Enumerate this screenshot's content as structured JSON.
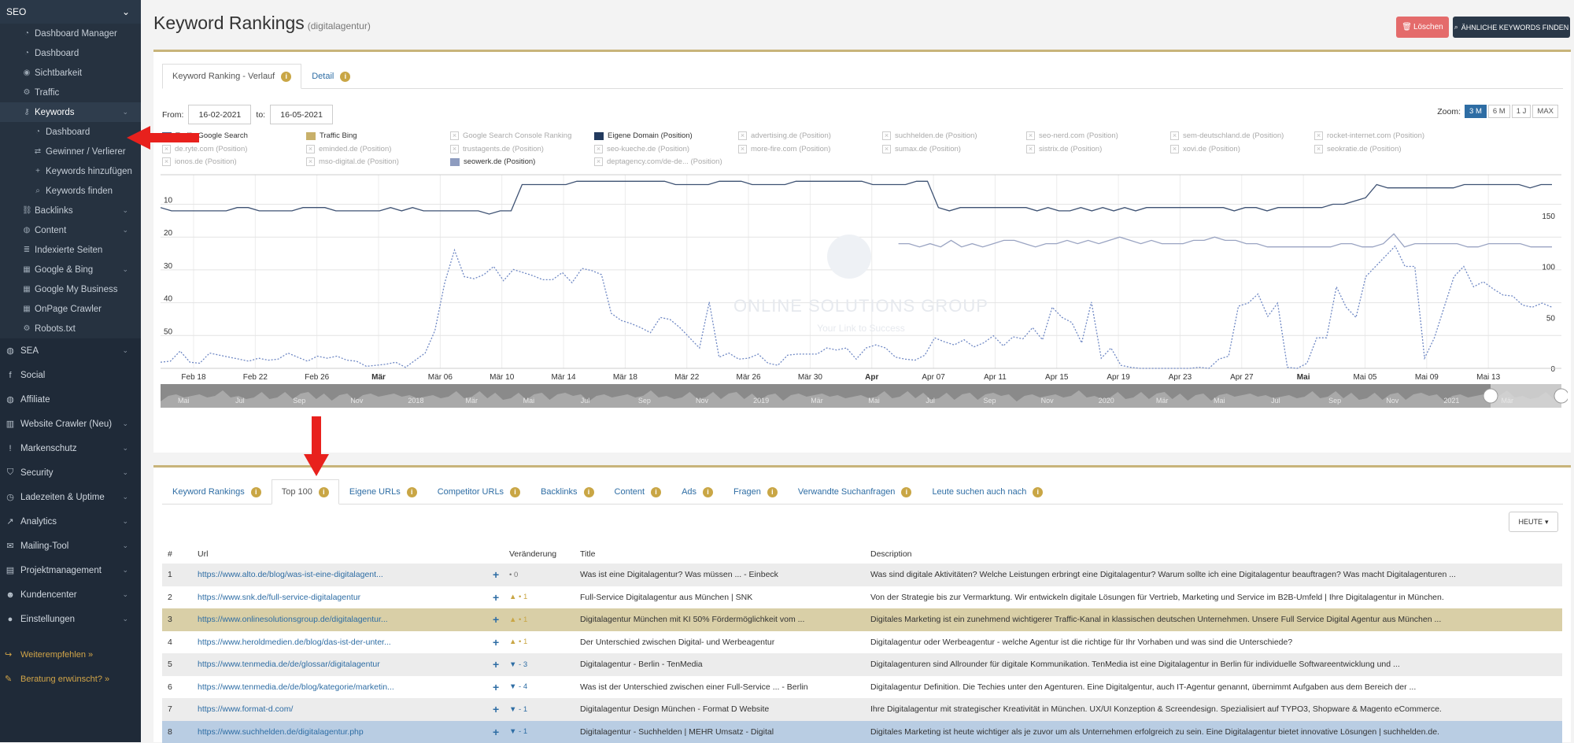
{
  "sidebar": {
    "section": "SEO",
    "seo_items": [
      {
        "label": "Dashboard Manager",
        "icon": "dashboard-icon"
      },
      {
        "label": "Dashboard",
        "icon": "dashboard-icon"
      },
      {
        "label": "Sichtbarkeit",
        "icon": "eye-icon"
      },
      {
        "label": "Traffic",
        "icon": "cogs-icon"
      },
      {
        "label": "Keywords",
        "icon": "key-icon"
      }
    ],
    "keyword_items": [
      {
        "label": "Dashboard",
        "icon": "dashboard-icon"
      },
      {
        "label": "Gewinner / Verlierer",
        "icon": "swap-icon"
      },
      {
        "label": "Keywords hinzufügen",
        "icon": "plus-icon"
      },
      {
        "label": "Keywords finden",
        "icon": "search-icon"
      }
    ],
    "seo_items2": [
      {
        "label": "Backlinks",
        "icon": "link-icon"
      },
      {
        "label": "Content",
        "icon": "globe-icon"
      },
      {
        "label": "Indexierte Seiten",
        "icon": "list-icon"
      },
      {
        "label": "Google & Bing",
        "icon": "building-icon"
      },
      {
        "label": "Google My Business",
        "icon": "building-icon"
      },
      {
        "label": "OnPage Crawler",
        "icon": "building-icon"
      },
      {
        "label": "Robots.txt",
        "icon": "cog-icon"
      }
    ],
    "main_items": [
      {
        "label": "SEA",
        "icon": "globe-icon"
      },
      {
        "label": "Social",
        "icon": "facebook-icon"
      },
      {
        "label": "Affiliate",
        "icon": "globe-icon"
      },
      {
        "label": "Website Crawler (Neu)",
        "icon": "chart-icon"
      },
      {
        "label": "Markenschutz",
        "icon": "exclamation-icon"
      },
      {
        "label": "Security",
        "icon": "shield-icon"
      },
      {
        "label": "Ladezeiten & Uptime",
        "icon": "clock-icon"
      },
      {
        "label": "Analytics",
        "icon": "analytics-icon"
      },
      {
        "label": "Mailing-Tool",
        "icon": "envelope-icon"
      },
      {
        "label": "Projektmanagement",
        "icon": "calendar-icon"
      },
      {
        "label": "Kundencenter",
        "icon": "users-icon"
      },
      {
        "label": "Einstellungen",
        "icon": "user-icon"
      }
    ],
    "extra": [
      {
        "label": "Weiterempfehlen »",
        "icon": "share-icon"
      },
      {
        "label": "Beratung erwünscht? »",
        "icon": "chat-icon"
      }
    ]
  },
  "header": {
    "title": "Keyword Rankings",
    "subtitle": "(digitalagentur)",
    "delete_label": "Löschen",
    "find_label": "ÄHNLICHE KEYWORDS FINDEN"
  },
  "chart_panel": {
    "tabs": [
      "Keyword Ranking - Verlauf",
      "Detail"
    ],
    "from_label": "From:",
    "from_value": "16-02-2021",
    "to_label": "to:",
    "to_value": "16-05-2021",
    "zoom_label": "Zoom:",
    "zoom_options": [
      "3 M",
      "6 M",
      "1 J",
      "MAX"
    ]
  },
  "legend": [
    {
      "name": "Traffic Google Search",
      "on": true,
      "color": "#4a5f8a",
      "type": "swatch"
    },
    {
      "name": "Traffic Bing",
      "on": true,
      "color": "#c8b06a",
      "type": "swatch"
    },
    {
      "name": "Google Search Console Ranking",
      "on": false,
      "type": "x"
    },
    {
      "name": "Eigene Domain (Position)",
      "on": true,
      "color": "#223a5e",
      "type": "swatch"
    },
    {
      "name": "advertising.de (Position)",
      "on": false,
      "type": "x"
    },
    {
      "name": "suchhelden.de (Position)",
      "on": false,
      "type": "x"
    },
    {
      "name": "seo-nerd.com (Position)",
      "on": false,
      "type": "x"
    },
    {
      "name": "sem-deutschland.de (Position)",
      "on": false,
      "type": "x"
    },
    {
      "name": "rocket-internet.com (Position)",
      "on": false,
      "type": "x"
    },
    {
      "name": "de.ryte.com (Position)",
      "on": false,
      "type": "x"
    },
    {
      "name": "eminded.de (Position)",
      "on": false,
      "type": "x"
    },
    {
      "name": "trustagents.de (Position)",
      "on": false,
      "type": "x"
    },
    {
      "name": "seo-kueche.de (Position)",
      "on": false,
      "type": "x"
    },
    {
      "name": "more-fire.com (Position)",
      "on": false,
      "type": "x"
    },
    {
      "name": "sumax.de (Position)",
      "on": false,
      "type": "x"
    },
    {
      "name": "sistrix.de (Position)",
      "on": false,
      "type": "x"
    },
    {
      "name": "xovi.de (Position)",
      "on": false,
      "type": "x"
    },
    {
      "name": "seokratie.de (Position)",
      "on": false,
      "type": "x"
    },
    {
      "name": "ionos.de (Position)",
      "on": false,
      "type": "x"
    },
    {
      "name": "mso-digital.de (Position)",
      "on": false,
      "type": "x"
    },
    {
      "name": "seowerk.de (Position)",
      "on": true,
      "color": "#8e9cbf",
      "type": "swatch"
    },
    {
      "name": "deptagency.com/de-de... (Position)",
      "on": false,
      "type": "x"
    }
  ],
  "chart_data": {
    "type": "line",
    "y_left_ticks": [
      10,
      20,
      30,
      40,
      50
    ],
    "y_left_range": [
      1,
      60
    ],
    "y_right_ticks": [
      150,
      100,
      50,
      0
    ],
    "y_right_range": [
      0,
      190
    ],
    "x_ticks": [
      "Feb 18",
      "Feb 22",
      "Feb 26",
      "Mär",
      "Mär 06",
      "Mär 10",
      "Mär 14",
      "Mär 18",
      "Mär 22",
      "Mär 26",
      "Mär 30",
      "Apr",
      "Apr 07",
      "Apr 11",
      "Apr 15",
      "Apr 19",
      "Apr 23",
      "Apr 27",
      "Mai",
      "Mai 05",
      "Mai 09",
      "Mai 13"
    ],
    "x_ticks_bold": [
      "Mär",
      "Apr",
      "Mai"
    ],
    "navigator_labels": [
      "Mai",
      "Jul",
      "Sep",
      "Nov",
      "2018",
      "Mär",
      "Mai",
      "Jul",
      "Sep",
      "Nov",
      "2019",
      "Mär",
      "Mai",
      "Jul",
      "Sep",
      "Nov",
      "2020",
      "Mär",
      "Mai",
      "Jul",
      "Sep",
      "Nov",
      "2021",
      "Mär"
    ],
    "watermark": "ONLINE SOLUTIONS GROUP",
    "watermark_sub": "Your Link to Success",
    "series": [
      {
        "name": "Eigene Domain (Position)",
        "axis": "left",
        "values": [
          11,
          12,
          12,
          12,
          12,
          12,
          12,
          11,
          11,
          12,
          12,
          12,
          12,
          11,
          11,
          11,
          12,
          12,
          12,
          12,
          12,
          11,
          12,
          11,
          12,
          12,
          12,
          12,
          12,
          12,
          13,
          12,
          12,
          4,
          4,
          4,
          4,
          4,
          3,
          3,
          3,
          3,
          3,
          3,
          3,
          3,
          3,
          4,
          4,
          4,
          4,
          3,
          3,
          3,
          4,
          4,
          4,
          4,
          3,
          3,
          3,
          3,
          3,
          3,
          3,
          4,
          4,
          4,
          4,
          3,
          3,
          11,
          12,
          11,
          11,
          11,
          11,
          11,
          11,
          11,
          12,
          11,
          12,
          12,
          11,
          12,
          11,
          12,
          11,
          12,
          11,
          11,
          11,
          11,
          11,
          11,
          11,
          11,
          12,
          11,
          11,
          12,
          11,
          11,
          11,
          11,
          11,
          10,
          10,
          9,
          8,
          4,
          5,
          5,
          5,
          5,
          5,
          5,
          5,
          4,
          4,
          4,
          4,
          4,
          4,
          5,
          4,
          4
        ],
        "color": "#3e5273"
      },
      {
        "name": "seowerk.de (Position)",
        "axis": "left",
        "values": [
          null,
          null,
          null,
          null,
          null,
          null,
          null,
          null,
          null,
          null,
          null,
          null,
          null,
          null,
          null,
          null,
          null,
          null,
          null,
          null,
          null,
          null,
          null,
          null,
          null,
          null,
          null,
          null,
          null,
          null,
          null,
          null,
          null,
          null,
          null,
          null,
          null,
          null,
          null,
          null,
          null,
          null,
          null,
          null,
          null,
          null,
          null,
          null,
          null,
          null,
          null,
          null,
          null,
          null,
          null,
          null,
          null,
          null,
          null,
          null,
          null,
          null,
          null,
          null,
          null,
          null,
          null,
          null,
          null,
          null,
          22,
          22,
          23,
          22,
          23,
          21,
          23,
          22,
          23,
          22,
          21,
          21,
          22,
          23,
          22,
          22,
          21,
          22,
          21,
          22,
          21,
          20,
          21,
          22,
          21,
          22,
          22,
          22,
          21,
          21,
          20,
          21,
          21,
          22,
          22,
          23,
          23,
          23,
          23,
          23,
          23,
          23,
          22,
          22,
          23,
          23,
          22,
          19,
          23,
          22,
          22,
          22,
          22,
          22,
          23,
          23,
          22,
          22,
          22,
          22,
          23,
          23,
          23
        ],
        "color": "#9aa4c2"
      },
      {
        "name": "Traffic Google Search",
        "axis": "right",
        "values": [
          6,
          7,
          17,
          6,
          5,
          15,
          13,
          11,
          9,
          7,
          10,
          8,
          9,
          15,
          11,
          7,
          12,
          10,
          12,
          8,
          7,
          2,
          3,
          4,
          6,
          1,
          8,
          15,
          37,
          84,
          116,
          90,
          88,
          92,
          100,
          86,
          97,
          94,
          91,
          87,
          87,
          94,
          84,
          98,
          96,
          92,
          54,
          47,
          44,
          40,
          35,
          50,
          48,
          40,
          30,
          20,
          65,
          11,
          15,
          9,
          10,
          14,
          5,
          3,
          13,
          14,
          14,
          14,
          20,
          18,
          20,
          9,
          20,
          23,
          20,
          11,
          9,
          8,
          13,
          30,
          26,
          23,
          28,
          21,
          25,
          32,
          22,
          31,
          29,
          40,
          28,
          60,
          50,
          45,
          25,
          65,
          10,
          20,
          3,
          1,
          0,
          0,
          0,
          0,
          0,
          0,
          1,
          0,
          9,
          12,
          61,
          64,
          73,
          51,
          64,
          1,
          0,
          5,
          30,
          30,
          80,
          60,
          50,
          90,
          100,
          110,
          120,
          100,
          100,
          10,
          30,
          60,
          90,
          100,
          80,
          85,
          78,
          72,
          71,
          62,
          60,
          64,
          60
        ],
        "color": "#6f88c4"
      }
    ]
  },
  "table_panel": {
    "tabs": [
      "Keyword Rankings",
      "Top 100",
      "Eigene URLs",
      "Competitor URLs",
      "Backlinks",
      "Content",
      "Ads",
      "Fragen",
      "Verwandte Suchanfragen",
      "Leute suchen auch nach"
    ],
    "heute_label": "HEUTE",
    "columns": [
      "#",
      "Url",
      "",
      "Veränderung",
      "Title",
      "Description"
    ],
    "rows": [
      {
        "n": "1",
        "url": "https://www.alto.de/blog/was-ist-eine-digitalagent...",
        "change": "• 0",
        "dir": "none",
        "title": "Was ist eine Digitalagentur? Was müssen ... - Einbeck",
        "desc": "Was sind digitale Aktivitäten? Welche Leistungen erbringt eine Digitalagentur? Warum sollte ich eine Digitalagentur beauftragen? Was macht Digitalagenturen ..."
      },
      {
        "n": "2",
        "url": "https://www.snk.de/full-service-digitalagentur",
        "change": "▲ • 1",
        "dir": "up",
        "title": "Full-Service Digitalagentur aus München | SNK",
        "desc": "Von der Strategie bis zur Vermarktung. Wir entwickeln digitale Lösungen für Vertrieb, Marketing und Service im B2B-Umfeld | Ihre Digitalagentur in München."
      },
      {
        "n": "3",
        "url": "https://www.onlinesolutionsgroup.de/digitalagentur...",
        "change": "▲ • 1",
        "dir": "up",
        "title": "Digitalagentur München mit KI 50% Fördermöglichkeit vom ...",
        "desc": "Digitales Marketing ist ein zunehmend wichtigerer Traffic-Kanal in klassischen deutschen Unternehmen. Unsere Full Service Digital Agentur aus München ..."
      },
      {
        "n": "4",
        "url": "https://www.heroldmedien.de/blog/das-ist-der-unter...",
        "change": "▲ • 1",
        "dir": "up",
        "title": "Der Unterschied zwischen Digital- und Werbeagentur",
        "desc": "Digitalagentur oder Werbeagentur - welche Agentur ist die richtige für Ihr Vorhaben und was sind die Unterschiede?"
      },
      {
        "n": "5",
        "url": "https://www.tenmedia.de/de/glossar/digitalagentur",
        "change": "▼ - 3",
        "dir": "down",
        "title": "Digitalagentur - Berlin - TenMedia",
        "desc": "Digitalagenturen sind Allrounder für digitale Kommunikation. TenMedia ist eine Digitalagentur in Berlin für individuelle Softwareentwicklung und ..."
      },
      {
        "n": "6",
        "url": "https://www.tenmedia.de/de/blog/kategorie/marketin...",
        "change": "▼ - 4",
        "dir": "down",
        "title": "Was ist der Unterschied zwischen einer Full-Service ... - Berlin",
        "desc": "Digitalagentur Definition. Die Techies unter den Agenturen. Eine Digitalgentur, auch IT-Agentur genannt, übernimmt Aufgaben aus dem Bereich der ..."
      },
      {
        "n": "7",
        "url": "https://www.format-d.com/",
        "change": "▼ - 1",
        "dir": "down",
        "title": "Digitalagentur Design München - Format D Website",
        "desc": "Ihre Digitalagentur mit strategischer Kreativität in München. UX/UI Konzeption & Screendesign. Spezialisiert auf TYPO3, Shopware & Magento eCommerce."
      },
      {
        "n": "8",
        "url": "https://www.suchhelden.de/digitalagentur.php",
        "change": "▼ - 1",
        "dir": "down",
        "title": "Digitalagentur - Suchhelden | MEHR Umsatz - Digital",
        "desc": "Digitales Marketing ist heute wichtiger als je zuvor um als Unternehmen erfolgreich zu sein. Eine Digitalagentur bietet innovative Lösungen | suchhelden.de."
      }
    ]
  }
}
